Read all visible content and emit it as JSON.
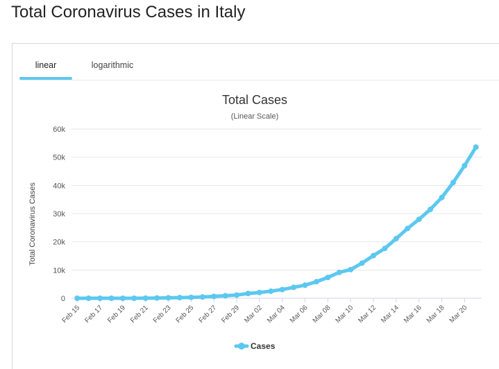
{
  "page": {
    "title": "Total Coronavirus Cases in Italy"
  },
  "tabs": [
    {
      "label": "linear",
      "active": true
    },
    {
      "label": "logarithmic",
      "active": false
    }
  ],
  "colors": {
    "series": "#5cc8f0",
    "grid": "#e6e6e6",
    "tab_underline": "#5cc8f0"
  },
  "chart_data": {
    "type": "line",
    "title": "Total Cases",
    "subtitle": "(Linear Scale)",
    "xlabel": "",
    "ylabel": "Total Coronavirus Cases",
    "ylim": [
      0,
      60000
    ],
    "yticks": [
      0,
      10000,
      20000,
      30000,
      40000,
      50000,
      60000
    ],
    "ytick_labels": [
      "0",
      "10k",
      "20k",
      "30k",
      "40k",
      "50k",
      "60k"
    ],
    "grid": true,
    "legend": {
      "position": "bottom-center"
    },
    "x": [
      "Feb 15",
      "Feb 16",
      "Feb 17",
      "Feb 18",
      "Feb 19",
      "Feb 20",
      "Feb 21",
      "Feb 22",
      "Feb 23",
      "Feb 24",
      "Feb 25",
      "Feb 26",
      "Feb 27",
      "Feb 28",
      "Feb 29",
      "Mar 01",
      "Mar 02",
      "Mar 03",
      "Mar 04",
      "Mar 05",
      "Mar 06",
      "Mar 07",
      "Mar 08",
      "Mar 09",
      "Mar 10",
      "Mar 11",
      "Mar 12",
      "Mar 13",
      "Mar 14",
      "Mar 15",
      "Mar 16",
      "Mar 17",
      "Mar 18",
      "Mar 19",
      "Mar 20",
      "Mar 21"
    ],
    "xtick_labels": [
      "Feb 15",
      "Feb 17",
      "Feb 19",
      "Feb 21",
      "Feb 23",
      "Feb 25",
      "Feb 27",
      "Feb 29",
      "Mar 02",
      "Mar 04",
      "Mar 06",
      "Mar 08",
      "Mar 10",
      "Mar 12",
      "Mar 14",
      "Mar 16",
      "Mar 18",
      "Mar 20"
    ],
    "series": [
      {
        "name": "Cases",
        "values": [
          3,
          3,
          3,
          3,
          3,
          3,
          20,
          79,
          150,
          229,
          322,
          453,
          655,
          888,
          1128,
          1694,
          2036,
          2502,
          3089,
          3858,
          4636,
          5883,
          7375,
          9172,
          10149,
          12462,
          15113,
          17660,
          21157,
          24747,
          27980,
          31506,
          35713,
          41035,
          47021,
          53578
        ]
      }
    ]
  }
}
